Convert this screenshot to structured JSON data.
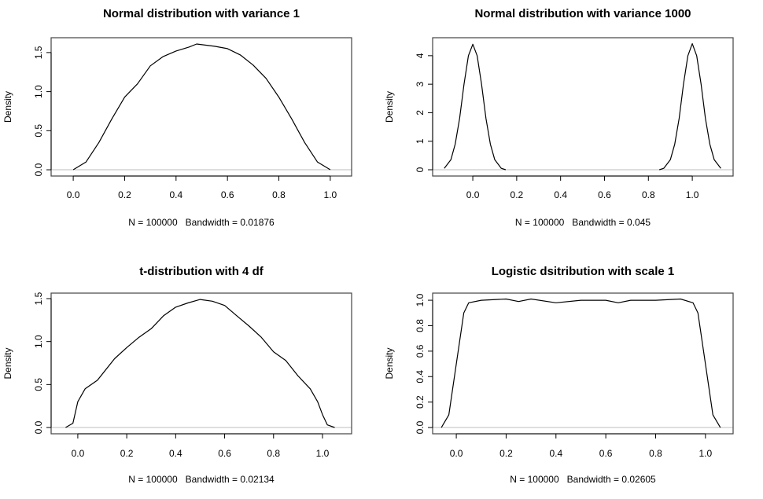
{
  "chart_data": [
    {
      "type": "line",
      "title": "Normal distribution with variance 1",
      "xlabel": "N = 100000   Bandwidth = 0.01876",
      "ylabel": "Density",
      "xlim": [
        -0.086,
        1.083
      ],
      "ylim": [
        -0.08,
        1.69
      ],
      "xticks": [
        0.0,
        0.2,
        0.4,
        0.6,
        0.8,
        1.0
      ],
      "xtick_labels": [
        "0.0",
        "0.2",
        "0.4",
        "0.6",
        "0.8",
        "1.0"
      ],
      "yticks": [
        0.0,
        0.5,
        1.0,
        1.5
      ],
      "ytick_labels": [
        "0.0",
        "0.5",
        "1.0",
        "1.5"
      ],
      "grid": false,
      "x": [
        0,
        0.05,
        0.1,
        0.15,
        0.2,
        0.25,
        0.3,
        0.35,
        0.4,
        0.45,
        0.48,
        0.55,
        0.6,
        0.65,
        0.7,
        0.75,
        0.8,
        0.85,
        0.9,
        0.95,
        1.0
      ],
      "y": [
        0,
        0.1,
        0.35,
        0.65,
        0.93,
        1.1,
        1.33,
        1.45,
        1.52,
        1.57,
        1.61,
        1.58,
        1.55,
        1.47,
        1.34,
        1.17,
        0.93,
        0.65,
        0.35,
        0.1,
        0
      ]
    },
    {
      "type": "line",
      "title": "Normal distribution with variance 1000",
      "xlabel": "N = 100000   Bandwidth = 0.045",
      "ylabel": "Density",
      "xlim": [
        -0.183,
        1.186
      ],
      "ylim": [
        -0.22,
        4.63
      ],
      "xticks": [
        0.0,
        0.2,
        0.4,
        0.6,
        0.8,
        1.0
      ],
      "xtick_labels": [
        "0.0",
        "0.2",
        "0.4",
        "0.6",
        "0.8",
        "1.0"
      ],
      "yticks": [
        0,
        1,
        2,
        3,
        4
      ],
      "ytick_labels": [
        "0",
        "1",
        "2",
        "3",
        "4"
      ],
      "grid": false,
      "x": [
        -0.13,
        -0.1,
        -0.08,
        -0.06,
        -0.04,
        -0.02,
        0,
        0.02,
        0.04,
        0.06,
        0.08,
        0.1,
        0.13,
        0.15,
        0.85,
        0.87,
        0.9,
        0.92,
        0.94,
        0.96,
        0.98,
        1.0,
        1.02,
        1.04,
        1.06,
        1.08,
        1.1,
        1.13
      ],
      "y": [
        0.05,
        0.35,
        0.9,
        1.8,
        3.0,
        4.0,
        4.4,
        4.0,
        3.0,
        1.8,
        0.9,
        0.35,
        0.05,
        0,
        0,
        0.05,
        0.35,
        0.9,
        1.8,
        3.0,
        4.0,
        4.42,
        4.0,
        3.0,
        1.8,
        0.9,
        0.35,
        0.05
      ],
      "segments_break_after_index": 13
    },
    {
      "type": "line",
      "title": "t-distribution with 4 df",
      "xlabel": "N = 100000   Bandwidth = 0.02134",
      "ylabel": "Density",
      "xlim": [
        -0.109,
        1.119
      ],
      "ylim": [
        -0.073,
        1.564
      ],
      "xticks": [
        0.0,
        0.2,
        0.4,
        0.6,
        0.8,
        1.0
      ],
      "xtick_labels": [
        "0.0",
        "0.2",
        "0.4",
        "0.6",
        "0.8",
        "1.0"
      ],
      "yticks": [
        0.0,
        0.5,
        1.0,
        1.5
      ],
      "ytick_labels": [
        "0.0",
        "0.5",
        "1.0",
        "1.5"
      ],
      "grid": false,
      "x": [
        -0.05,
        -0.02,
        0,
        0.03,
        0.08,
        0.15,
        0.2,
        0.25,
        0.3,
        0.35,
        0.4,
        0.45,
        0.5,
        0.55,
        0.6,
        0.65,
        0.7,
        0.75,
        0.8,
        0.85,
        0.9,
        0.95,
        0.98,
        1.0,
        1.02,
        1.05
      ],
      "y": [
        0,
        0.05,
        0.3,
        0.45,
        0.55,
        0.8,
        0.93,
        1.05,
        1.15,
        1.3,
        1.4,
        1.45,
        1.49,
        1.47,
        1.42,
        1.3,
        1.18,
        1.05,
        0.88,
        0.78,
        0.6,
        0.45,
        0.3,
        0.15,
        0.03,
        0
      ]
    },
    {
      "type": "line",
      "title": "Logistic dsitribution with scale 1",
      "xlabel": "N = 100000   Bandwidth = 0.02605",
      "ylabel": "Density",
      "xlim": [
        -0.095,
        1.111
      ],
      "ylim": [
        -0.049,
        1.056
      ],
      "xticks": [
        0.0,
        0.2,
        0.4,
        0.6,
        0.8,
        1.0
      ],
      "xtick_labels": [
        "0.0",
        "0.2",
        "0.4",
        "0.6",
        "0.8",
        "1.0"
      ],
      "yticks": [
        0.0,
        0.2,
        0.4,
        0.6,
        0.8,
        1.0
      ],
      "ytick_labels": [
        "0.0",
        "0.2",
        "0.4",
        "0.6",
        "0.8",
        "1.0"
      ],
      "grid": false,
      "x": [
        -0.06,
        -0.03,
        0,
        0.03,
        0.05,
        0.1,
        0.2,
        0.25,
        0.3,
        0.4,
        0.5,
        0.6,
        0.65,
        0.7,
        0.8,
        0.9,
        0.95,
        0.97,
        1.0,
        1.03,
        1.06
      ],
      "y": [
        0,
        0.1,
        0.5,
        0.9,
        0.98,
        1.0,
        1.01,
        0.99,
        1.01,
        0.98,
        1.0,
        1.0,
        0.98,
        1.0,
        1.0,
        1.01,
        0.98,
        0.9,
        0.5,
        0.1,
        0
      ]
    }
  ]
}
